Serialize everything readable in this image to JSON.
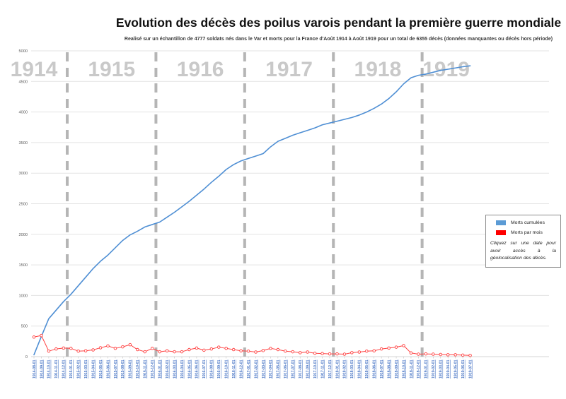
{
  "page": {
    "title": "Evolution des décès des poilus varois pendant la première guerre mondiale",
    "subtitle": "Realisé sur un échantillon de 4777 soldats nés dans le Var et morts pour la France d'Août 1914 à Août 1919 pour un total de 6355 décès (données manquantes ou décès hors période)"
  },
  "legend": {
    "items": [
      {
        "label": "Morts cumulées",
        "color": "#5b9bd5"
      },
      {
        "label": "Morts par mois",
        "color": "#fe0000"
      }
    ],
    "note": "Cliquez sur une date pour avoir accès à la géolocalisation des décès."
  },
  "chart_data": {
    "type": "line",
    "title": "Evolution des décès des poilus varois pendant la première guerre mondiale",
    "xlabel": "",
    "ylabel": "",
    "ylim": [
      0,
      5000
    ],
    "yticks": [
      0,
      500,
      1000,
      1500,
      2000,
      2500,
      3000,
      3500,
      4000,
      4500,
      5000
    ],
    "grid": true,
    "legend_position": "right",
    "year_bands": [
      "1914",
      "1915",
      "1916",
      "1917",
      "1918",
      "1919"
    ],
    "x": [
      "1914-08-01",
      "1914-09-01",
      "1914-10-01",
      "1914-11-01",
      "1914-12-01",
      "1915-01-01",
      "1915-02-01",
      "1915-03-01",
      "1915-04-01",
      "1915-05-01",
      "1915-06-01",
      "1915-07-01",
      "1915-08-01",
      "1915-09-01",
      "1915-10-01",
      "1915-11-01",
      "1915-12-01",
      "1916-01-01",
      "1916-02-01",
      "1916-03-01",
      "1916-04-01",
      "1916-05-01",
      "1916-06-01",
      "1916-07-01",
      "1916-08-01",
      "1916-09-01",
      "1916-10-01",
      "1916-11-01",
      "1916-12-01",
      "1917-01-01",
      "1917-02-01",
      "1917-03-01",
      "1917-04-01",
      "1917-05-01",
      "1917-06-01",
      "1917-07-01",
      "1917-08-01",
      "1917-09-01",
      "1917-10-01",
      "1917-11-01",
      "1917-12-01",
      "1918-01-01",
      "1918-02-01",
      "1918-03-01",
      "1918-04-01",
      "1918-05-01",
      "1918-06-01",
      "1918-07-01",
      "1918-08-01",
      "1918-09-01",
      "1918-10-01",
      "1918-11-01",
      "1918-12-01",
      "1919-01-01",
      "1919-02-01",
      "1919-03-01",
      "1919-04-01",
      "1919-05-01",
      "1919-06-01",
      "1919-07-01"
    ],
    "series": [
      {
        "name": "Morts cumulées",
        "color": "#4f8fd4",
        "marker": "none",
        "values": [
          30,
          330,
          620,
          760,
          900,
          1020,
          1160,
          1300,
          1440,
          1560,
          1660,
          1780,
          1900,
          1990,
          2050,
          2120,
          2160,
          2200,
          2280,
          2360,
          2450,
          2540,
          2640,
          2740,
          2850,
          2950,
          3060,
          3140,
          3200,
          3240,
          3280,
          3320,
          3430,
          3520,
          3570,
          3620,
          3660,
          3700,
          3740,
          3790,
          3820,
          3850,
          3880,
          3910,
          3950,
          4000,
          4060,
          4130,
          4220,
          4330,
          4460,
          4560,
          4600,
          4620,
          4650,
          4680,
          4700,
          4720,
          4740,
          4755
        ]
      },
      {
        "name": "Morts par mois",
        "color": "#ff4040",
        "marker": "circle-open",
        "values": [
          320,
          345,
          90,
          125,
          140,
          135,
          90,
          95,
          110,
          145,
          175,
          135,
          160,
          195,
          115,
          80,
          135,
          80,
          95,
          80,
          80,
          115,
          140,
          105,
          125,
          155,
          135,
          115,
          95,
          90,
          75,
          100,
          135,
          115,
          90,
          80,
          65,
          75,
          55,
          50,
          45,
          45,
          40,
          65,
          75,
          90,
          95,
          125,
          140,
          155,
          180,
          60,
          40,
          45,
          40,
          35,
          30,
          30,
          25,
          20
        ]
      }
    ]
  }
}
